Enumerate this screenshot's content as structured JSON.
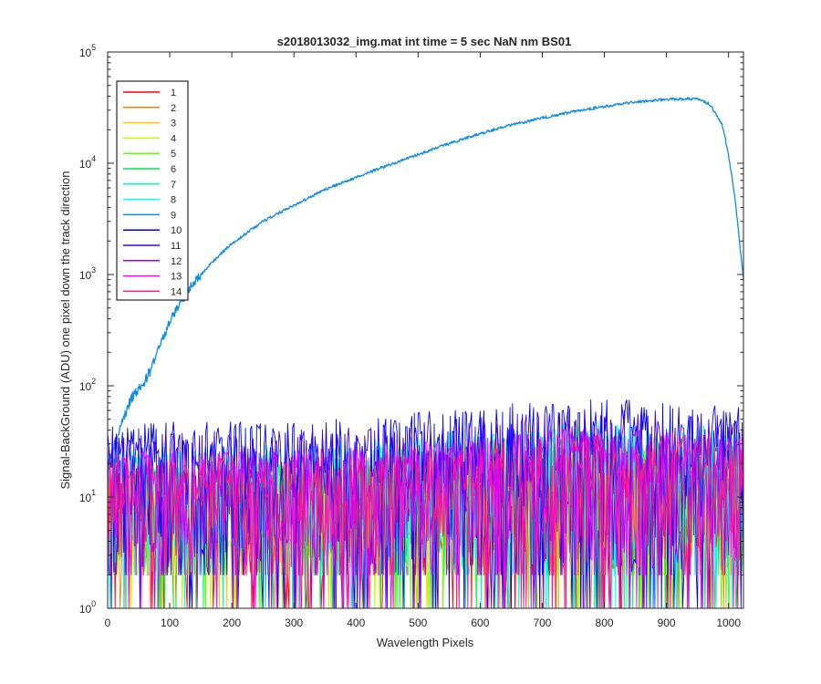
{
  "chart_data": {
    "type": "line",
    "title": "s2018013032_img.mat int time = 5 sec  NaN nm BS01",
    "xlabel": "Wavelength Pixels",
    "ylabel": "Signal-BackGround (ADU) one pixel down the track direction",
    "xlim": [
      0,
      1024
    ],
    "ylim": [
      1,
      100000
    ],
    "yscale": "log",
    "x_ticks": [
      "0",
      "100",
      "200",
      "300",
      "400",
      "500",
      "600",
      "700",
      "800",
      "900",
      "1000"
    ],
    "y_tick_exponents": [
      "0",
      "1",
      "2",
      "3",
      "4",
      "5"
    ],
    "y_tick_base": "10",
    "grid": false,
    "legend_position": "top-left",
    "series": [
      {
        "name": "1",
        "color": "#ff0000",
        "kind": "noise",
        "base": 8,
        "x": [
          0,
          1024
        ]
      },
      {
        "name": "2",
        "color": "#ff7f00",
        "kind": "noise",
        "base": 8,
        "x": [
          0,
          1024
        ]
      },
      {
        "name": "3",
        "color": "#ffcc00",
        "kind": "noise",
        "base": 8,
        "x": [
          0,
          1024
        ]
      },
      {
        "name": "4",
        "color": "#bfff00",
        "kind": "noise",
        "base": 9,
        "x": [
          0,
          1024
        ]
      },
      {
        "name": "5",
        "color": "#66ff00",
        "kind": "noise",
        "base": 10,
        "x": [
          0,
          1024
        ]
      },
      {
        "name": "6",
        "color": "#00e64d",
        "kind": "noise",
        "base": 11,
        "x": [
          0,
          1024
        ]
      },
      {
        "name": "7",
        "color": "#00ffaa",
        "kind": "noise",
        "base": 12,
        "x": [
          0,
          1024
        ]
      },
      {
        "name": "8",
        "color": "#00ffff",
        "kind": "noise",
        "base": 14,
        "x": [
          0,
          1024
        ]
      },
      {
        "name": "9",
        "color": "#0a8ce6",
        "kind": "curve",
        "x": [
          0,
          10,
          20,
          30,
          40,
          50,
          60,
          70,
          80,
          90,
          100,
          120,
          140,
          160,
          180,
          200,
          250,
          300,
          350,
          400,
          450,
          500,
          550,
          600,
          650,
          700,
          750,
          800,
          850,
          900,
          950,
          970,
          990,
          1000,
          1010,
          1020,
          1024
        ],
        "y": [
          20,
          28,
          40,
          60,
          80,
          95,
          110,
          140,
          200,
          280,
          380,
          600,
          850,
          1150,
          1500,
          1900,
          3000,
          4200,
          5800,
          7500,
          9500,
          12000,
          15000,
          18500,
          22000,
          25500,
          29000,
          32500,
          35500,
          37500,
          38000,
          34000,
          22000,
          12000,
          5000,
          1500,
          900
        ]
      },
      {
        "name": "10",
        "color": "#0000ff",
        "kind": "noise",
        "base": 22,
        "x": [
          0,
          1024
        ]
      },
      {
        "name": "11",
        "color": "#4000e6",
        "kind": "noise",
        "base": 18,
        "x": [
          0,
          1024
        ]
      },
      {
        "name": "12",
        "color": "#9900ff",
        "kind": "noise",
        "base": 12,
        "x": [
          0,
          1024
        ]
      },
      {
        "name": "13",
        "color": "#ff00ff",
        "kind": "noise",
        "base": 12,
        "x": [
          0,
          1024
        ]
      },
      {
        "name": "14",
        "color": "#ff1a80",
        "kind": "noise",
        "base": 11,
        "x": [
          0,
          1024
        ]
      }
    ]
  }
}
